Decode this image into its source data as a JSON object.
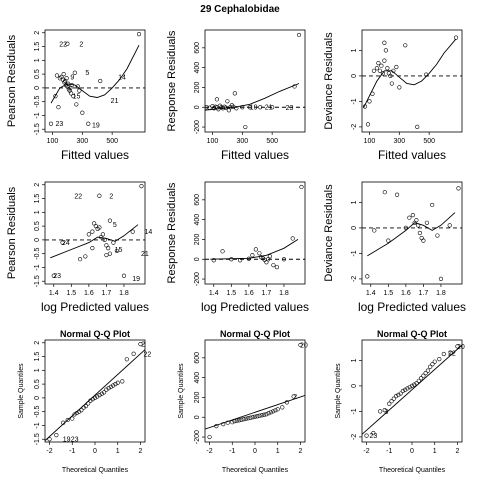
{
  "figure_title": "29 Cephalobidae",
  "chart_data": [
    {
      "panel": 1,
      "type": "scatter",
      "title": "",
      "xlabel": "Fitted values",
      "ylabel": "Pearson Residuals",
      "xlim": [
        50,
        720
      ],
      "ylim": [
        -1.6,
        2.1
      ],
      "xticks": [
        100,
        300,
        500
      ],
      "yticks": [
        -1.5,
        -1,
        -0.5,
        0,
        0.5,
        1,
        1.5,
        2
      ],
      "hline": 0,
      "x": [
        130,
        150,
        160,
        170,
        175,
        180,
        185,
        190,
        195,
        200,
        205,
        210,
        215,
        220,
        225,
        230,
        240,
        250,
        260,
        270,
        280,
        120,
        140,
        300,
        340,
        420,
        90,
        680,
        200
      ],
      "y": [
        0.45,
        0.35,
        0.4,
        0.3,
        0.5,
        0.2,
        0.25,
        0.1,
        0.35,
        0.05,
        0.15,
        -0.05,
        -0.1,
        0.0,
        -0.2,
        0.1,
        -0.3,
        0.55,
        -0.6,
        0.05,
        -0.1,
        -0.3,
        -0.7,
        -0.9,
        -1.3,
        0.25,
        -1.3,
        1.95,
        1.6
      ],
      "curve": {
        "x": [
          90,
          150,
          200,
          250,
          300,
          350,
          400,
          450,
          500,
          550,
          600,
          680
        ],
        "y": [
          -0.55,
          0.0,
          0.15,
          0.1,
          -0.1,
          -0.3,
          -0.35,
          -0.25,
          0.0,
          0.3,
          0.7,
          1.55
        ]
      },
      "labels": [
        {
          "text": "22",
          "x": 125,
          "y": 1.6
        },
        {
          "text": "2",
          "x": 260,
          "y": 1.6
        },
        {
          "text": "5",
          "x": 300,
          "y": 0.55
        },
        {
          "text": "14",
          "x": 520,
          "y": 0.4
        },
        {
          "text": "9",
          "x": 200,
          "y": 0.4
        },
        {
          "text": "15",
          "x": 215,
          "y": -0.3
        },
        {
          "text": "21",
          "x": 470,
          "y": -0.45
        },
        {
          "text": "23",
          "x": 100,
          "y": -1.3
        },
        {
          "text": "19",
          "x": 345,
          "y": -1.35
        }
      ]
    },
    {
      "panel": 2,
      "type": "scatter",
      "title": "",
      "xlabel": "Fitted values",
      "ylabel": "Response Residuals",
      "xlim": [
        50,
        720
      ],
      "ylim": [
        -250,
        780
      ],
      "xticks": [
        100,
        300,
        500
      ],
      "yticks": [
        -200,
        0,
        200,
        400,
        600
      ],
      "hline": 0,
      "x": [
        60,
        80,
        100,
        110,
        120,
        130,
        140,
        150,
        160,
        170,
        180,
        190,
        200,
        210,
        220,
        230,
        240,
        250,
        260,
        300,
        350,
        420,
        500,
        650,
        680,
        130,
        320
      ],
      "y": [
        0,
        -5,
        10,
        -10,
        5,
        0,
        -20,
        15,
        0,
        -10,
        5,
        -5,
        60,
        -30,
        0,
        20,
        5,
        140,
        -10,
        0,
        0,
        0,
        0,
        210,
        730,
        80,
        -200
      ],
      "curve": {
        "x": [
          50,
          150,
          250,
          350,
          450,
          550,
          680
        ],
        "y": [
          -30,
          -15,
          0,
          30,
          90,
          160,
          240
        ]
      },
      "labels": [
        {
          "text": "19",
          "x": 330,
          "y": 0
        },
        {
          "text": "21",
          "x": 430,
          "y": 0
        },
        {
          "text": "23",
          "x": 570,
          "y": -5
        }
      ]
    },
    {
      "panel": 3,
      "type": "scatter",
      "title": "",
      "xlabel": "Fitted values",
      "ylabel": "Deviance Residuals",
      "xlim": [
        50,
        720
      ],
      "ylim": [
        -2.2,
        1.8
      ],
      "xticks": [
        100,
        300,
        500
      ],
      "yticks": [
        -2,
        -1,
        0,
        1
      ],
      "hline": 0,
      "x": [
        70,
        100,
        130,
        150,
        160,
        170,
        180,
        190,
        200,
        210,
        220,
        230,
        240,
        250,
        260,
        280,
        300,
        340,
        420,
        480,
        680,
        90,
        120,
        200
      ],
      "y": [
        -1.2,
        -1.0,
        0.2,
        0.3,
        0.5,
        0.2,
        0.4,
        0.1,
        0.6,
        1.0,
        0.3,
        0.1,
        0.0,
        -0.3,
        0.2,
        0.35,
        -0.45,
        1.2,
        -2.0,
        0.05,
        1.5,
        -1.9,
        -0.7,
        1.3
      ],
      "curve": {
        "x": [
          60,
          150,
          200,
          250,
          300,
          350,
          400,
          450,
          500,
          550,
          600,
          680
        ],
        "y": [
          -1.25,
          -0.2,
          0.2,
          0.2,
          -0.05,
          -0.3,
          -0.35,
          -0.2,
          0.1,
          0.45,
          0.9,
          1.45
        ]
      },
      "labels": []
    },
    {
      "panel": 4,
      "type": "scatter",
      "title": "",
      "xlabel": "log Predicted values",
      "ylabel": "Pearson Residuals",
      "xlim": [
        1.35,
        1.92
      ],
      "ylim": [
        -1.6,
        2.1
      ],
      "xticks": [
        1.4,
        1.5,
        1.6,
        1.7,
        1.8
      ],
      "yticks": [
        -1.5,
        -1,
        -0.5,
        0,
        0.5,
        1,
        1.5,
        2
      ],
      "hline": 0,
      "x": [
        1.4,
        1.45,
        1.55,
        1.58,
        1.6,
        1.62,
        1.64,
        1.65,
        1.66,
        1.67,
        1.68,
        1.69,
        1.7,
        1.71,
        1.72,
        1.74,
        1.76,
        1.8,
        1.85,
        1.9,
        1.63,
        1.66,
        1.62,
        1.7,
        1.72
      ],
      "y": [
        -1.3,
        -0.1,
        -0.7,
        -0.6,
        0.2,
        0.3,
        0.5,
        0.4,
        0.45,
        0.1,
        0.2,
        0.0,
        -0.2,
        -0.3,
        -0.5,
        -0.1,
        -0.4,
        -1.3,
        0.3,
        1.95,
        0.6,
        1.6,
        -0.3,
        -0.55,
        0.7
      ],
      "curve": {
        "x": [
          1.38,
          1.5,
          1.6,
          1.65,
          1.7,
          1.75,
          1.8,
          1.88
        ],
        "y": [
          -0.65,
          -0.35,
          -0.1,
          0.1,
          0.05,
          -0.05,
          0.15,
          0.55
        ]
      },
      "labels": [
        {
          "text": "22",
          "x": 1.5,
          "y": 1.6
        },
        {
          "text": "2",
          "x": 1.7,
          "y": 1.6
        },
        {
          "text": "5",
          "x": 1.72,
          "y": 0.55
        },
        {
          "text": "14",
          "x": 1.9,
          "y": 0.3
        },
        {
          "text": "24",
          "x": 1.43,
          "y": -0.1
        },
        {
          "text": "15",
          "x": 1.73,
          "y": -0.35
        },
        {
          "text": "21",
          "x": 1.88,
          "y": -0.5
        },
        {
          "text": "23",
          "x": 1.38,
          "y": -1.3
        },
        {
          "text": "19",
          "x": 1.83,
          "y": -1.4
        }
      ]
    },
    {
      "panel": 5,
      "type": "scatter",
      "title": "",
      "xlabel": "log Predicted values",
      "ylabel": "Response Residuals",
      "xlim": [
        1.35,
        1.92
      ],
      "ylim": [
        -250,
        780
      ],
      "xticks": [
        1.4,
        1.5,
        1.6,
        1.7,
        1.8
      ],
      "yticks": [
        -200,
        0,
        200,
        400,
        600
      ],
      "hline": 0,
      "x": [
        1.4,
        1.45,
        1.5,
        1.55,
        1.6,
        1.62,
        1.64,
        1.66,
        1.67,
        1.68,
        1.69,
        1.7,
        1.71,
        1.72,
        1.74,
        1.76,
        1.8,
        1.85,
        1.9
      ],
      "y": [
        -10,
        80,
        0,
        -10,
        5,
        40,
        100,
        60,
        20,
        10,
        -5,
        -30,
        0,
        30,
        -60,
        -80,
        0,
        210,
        730
      ],
      "curve": {
        "x": [
          1.38,
          1.5,
          1.6,
          1.7,
          1.8,
          1.88
        ],
        "y": [
          0,
          5,
          10,
          40,
          110,
          200
        ]
      },
      "labels": []
    },
    {
      "panel": 6,
      "type": "scatter",
      "title": "",
      "xlabel": "log Predicted values",
      "ylabel": "Deviance Residuals",
      "xlim": [
        1.35,
        1.92
      ],
      "ylim": [
        -2.2,
        1.8
      ],
      "xticks": [
        1.4,
        1.5,
        1.6,
        1.7,
        1.8
      ],
      "yticks": [
        -2,
        -1,
        0,
        1
      ],
      "hline": 0,
      "x": [
        1.38,
        1.42,
        1.48,
        1.5,
        1.55,
        1.6,
        1.62,
        1.64,
        1.65,
        1.66,
        1.67,
        1.68,
        1.69,
        1.7,
        1.72,
        1.75,
        1.78,
        1.8,
        1.85,
        1.9
      ],
      "y": [
        -1.9,
        -0.1,
        1.4,
        -0.5,
        1.3,
        0.0,
        0.4,
        0.5,
        0.2,
        0.3,
        0.1,
        -0.2,
        -0.4,
        -0.5,
        0.2,
        0.9,
        -0.3,
        -2.0,
        0.1,
        1.55
      ],
      "curve": {
        "x": [
          1.38,
          1.5,
          1.6,
          1.65,
          1.7,
          1.75,
          1.8,
          1.88
        ],
        "y": [
          -1.1,
          -0.6,
          -0.1,
          0.2,
          0.1,
          -0.1,
          0.1,
          0.6
        ]
      },
      "labels": []
    },
    {
      "panel": 7,
      "type": "scatter",
      "title": "Normal Q-Q Plot",
      "xlabel": "Theoretical Quantiles",
      "ylabel": "Sample Quantiles",
      "xlim": [
        -2.2,
        2.2
      ],
      "ylim": [
        -1.6,
        2.1
      ],
      "xticks": [
        -2,
        -1,
        0,
        1,
        2
      ],
      "yticks": [
        -1.5,
        -1,
        -0.5,
        0,
        0.5,
        1,
        1.5,
        2
      ],
      "line": {
        "x": [
          -2.2,
          2.2
        ],
        "y": [
          -1.55,
          1.75
        ]
      },
      "x": [
        -2.0,
        -1.7,
        -1.4,
        -1.2,
        -1.0,
        -0.9,
        -0.8,
        -0.7,
        -0.6,
        -0.5,
        -0.4,
        -0.3,
        -0.2,
        -0.1,
        0.0,
        0.1,
        0.2,
        0.3,
        0.4,
        0.5,
        0.6,
        0.7,
        0.8,
        0.9,
        1.0,
        1.2,
        1.4,
        1.7,
        2.0
      ],
      "y": [
        -1.5,
        -1.35,
        -0.9,
        -0.8,
        -0.75,
        -0.6,
        -0.55,
        -0.5,
        -0.45,
        -0.35,
        -0.3,
        -0.2,
        -0.1,
        -0.05,
        0.0,
        0.05,
        0.1,
        0.15,
        0.2,
        0.3,
        0.35,
        0.4,
        0.45,
        0.5,
        0.55,
        0.6,
        1.4,
        1.6,
        1.95
      ],
      "labels": [
        {
          "text": "2",
          "x": 1.9,
          "y": 1.95
        },
        {
          "text": "22",
          "x": 2.0,
          "y": 1.6
        },
        {
          "text": "19",
          "x": -1.55,
          "y": -1.5
        },
        {
          "text": "23",
          "x": -1.2,
          "y": -1.5
        }
      ]
    },
    {
      "panel": 8,
      "type": "scatter",
      "title": "Normal Q-Q Plot",
      "xlabel": "Theoretical Quantiles",
      "ylabel": "Sample Quantiles",
      "xlim": [
        -2.2,
        2.2
      ],
      "ylim": [
        -250,
        780
      ],
      "xticks": [
        -2,
        -1,
        0,
        1,
        2
      ],
      "yticks": [
        -200,
        0,
        200,
        400,
        600
      ],
      "line": {
        "x": [
          -2.2,
          2.2
        ],
        "y": [
          -120,
          220
        ]
      },
      "x": [
        -2.0,
        -1.7,
        -1.4,
        -1.2,
        -1.0,
        -0.9,
        -0.8,
        -0.7,
        -0.6,
        -0.5,
        -0.4,
        -0.3,
        -0.2,
        -0.1,
        0.0,
        0.1,
        0.2,
        0.3,
        0.4,
        0.5,
        0.6,
        0.7,
        0.8,
        0.9,
        1.0,
        1.2,
        1.4,
        1.7,
        2.0
      ],
      "y": [
        -200,
        -90,
        -70,
        -55,
        -50,
        -40,
        -35,
        -30,
        -25,
        -20,
        -15,
        -10,
        -5,
        0,
        5,
        10,
        15,
        20,
        25,
        30,
        40,
        50,
        60,
        70,
        80,
        100,
        150,
        210,
        730
      ],
      "labels": [
        {
          "text": "20",
          "x": 1.85,
          "y": 730
        },
        {
          "text": "2",
          "x": 1.55,
          "y": 210
        }
      ]
    },
    {
      "panel": 9,
      "type": "scatter",
      "title": "Normal Q-Q Plot",
      "xlabel": "Theoretical Quantiles",
      "ylabel": "Sample Quantiles",
      "xlim": [
        -2.2,
        2.2
      ],
      "ylim": [
        -2.2,
        1.8
      ],
      "xticks": [
        -2,
        -1,
        0,
        1,
        2
      ],
      "yticks": [
        -2,
        -1,
        0,
        1
      ],
      "line": {
        "x": [
          -2.2,
          2.2
        ],
        "y": [
          -1.9,
          1.6
        ]
      },
      "x": [
        -2.0,
        -1.7,
        -1.4,
        -1.2,
        -1.0,
        -0.9,
        -0.8,
        -0.7,
        -0.6,
        -0.5,
        -0.4,
        -0.3,
        -0.2,
        -0.1,
        0.0,
        0.1,
        0.2,
        0.3,
        0.4,
        0.5,
        0.6,
        0.7,
        0.8,
        0.9,
        1.0,
        1.2,
        1.4,
        1.7,
        2.0
      ],
      "y": [
        -1.95,
        -1.85,
        -1.0,
        -0.95,
        -0.7,
        -0.6,
        -0.5,
        -0.4,
        -0.35,
        -0.3,
        -0.2,
        -0.15,
        -0.1,
        -0.05,
        0.0,
        0.05,
        0.1,
        0.2,
        0.3,
        0.4,
        0.5,
        0.6,
        0.75,
        0.85,
        0.95,
        1.05,
        1.25,
        1.3,
        1.55
      ],
      "labels": [
        {
          "text": "20",
          "x": 1.85,
          "y": 1.55
        },
        {
          "text": "22",
          "x": 1.45,
          "y": 1.3
        },
        {
          "text": "3",
          "x": -1.35,
          "y": -1.0
        },
        {
          "text": "23",
          "x": -2.0,
          "y": -1.95
        }
      ]
    }
  ]
}
